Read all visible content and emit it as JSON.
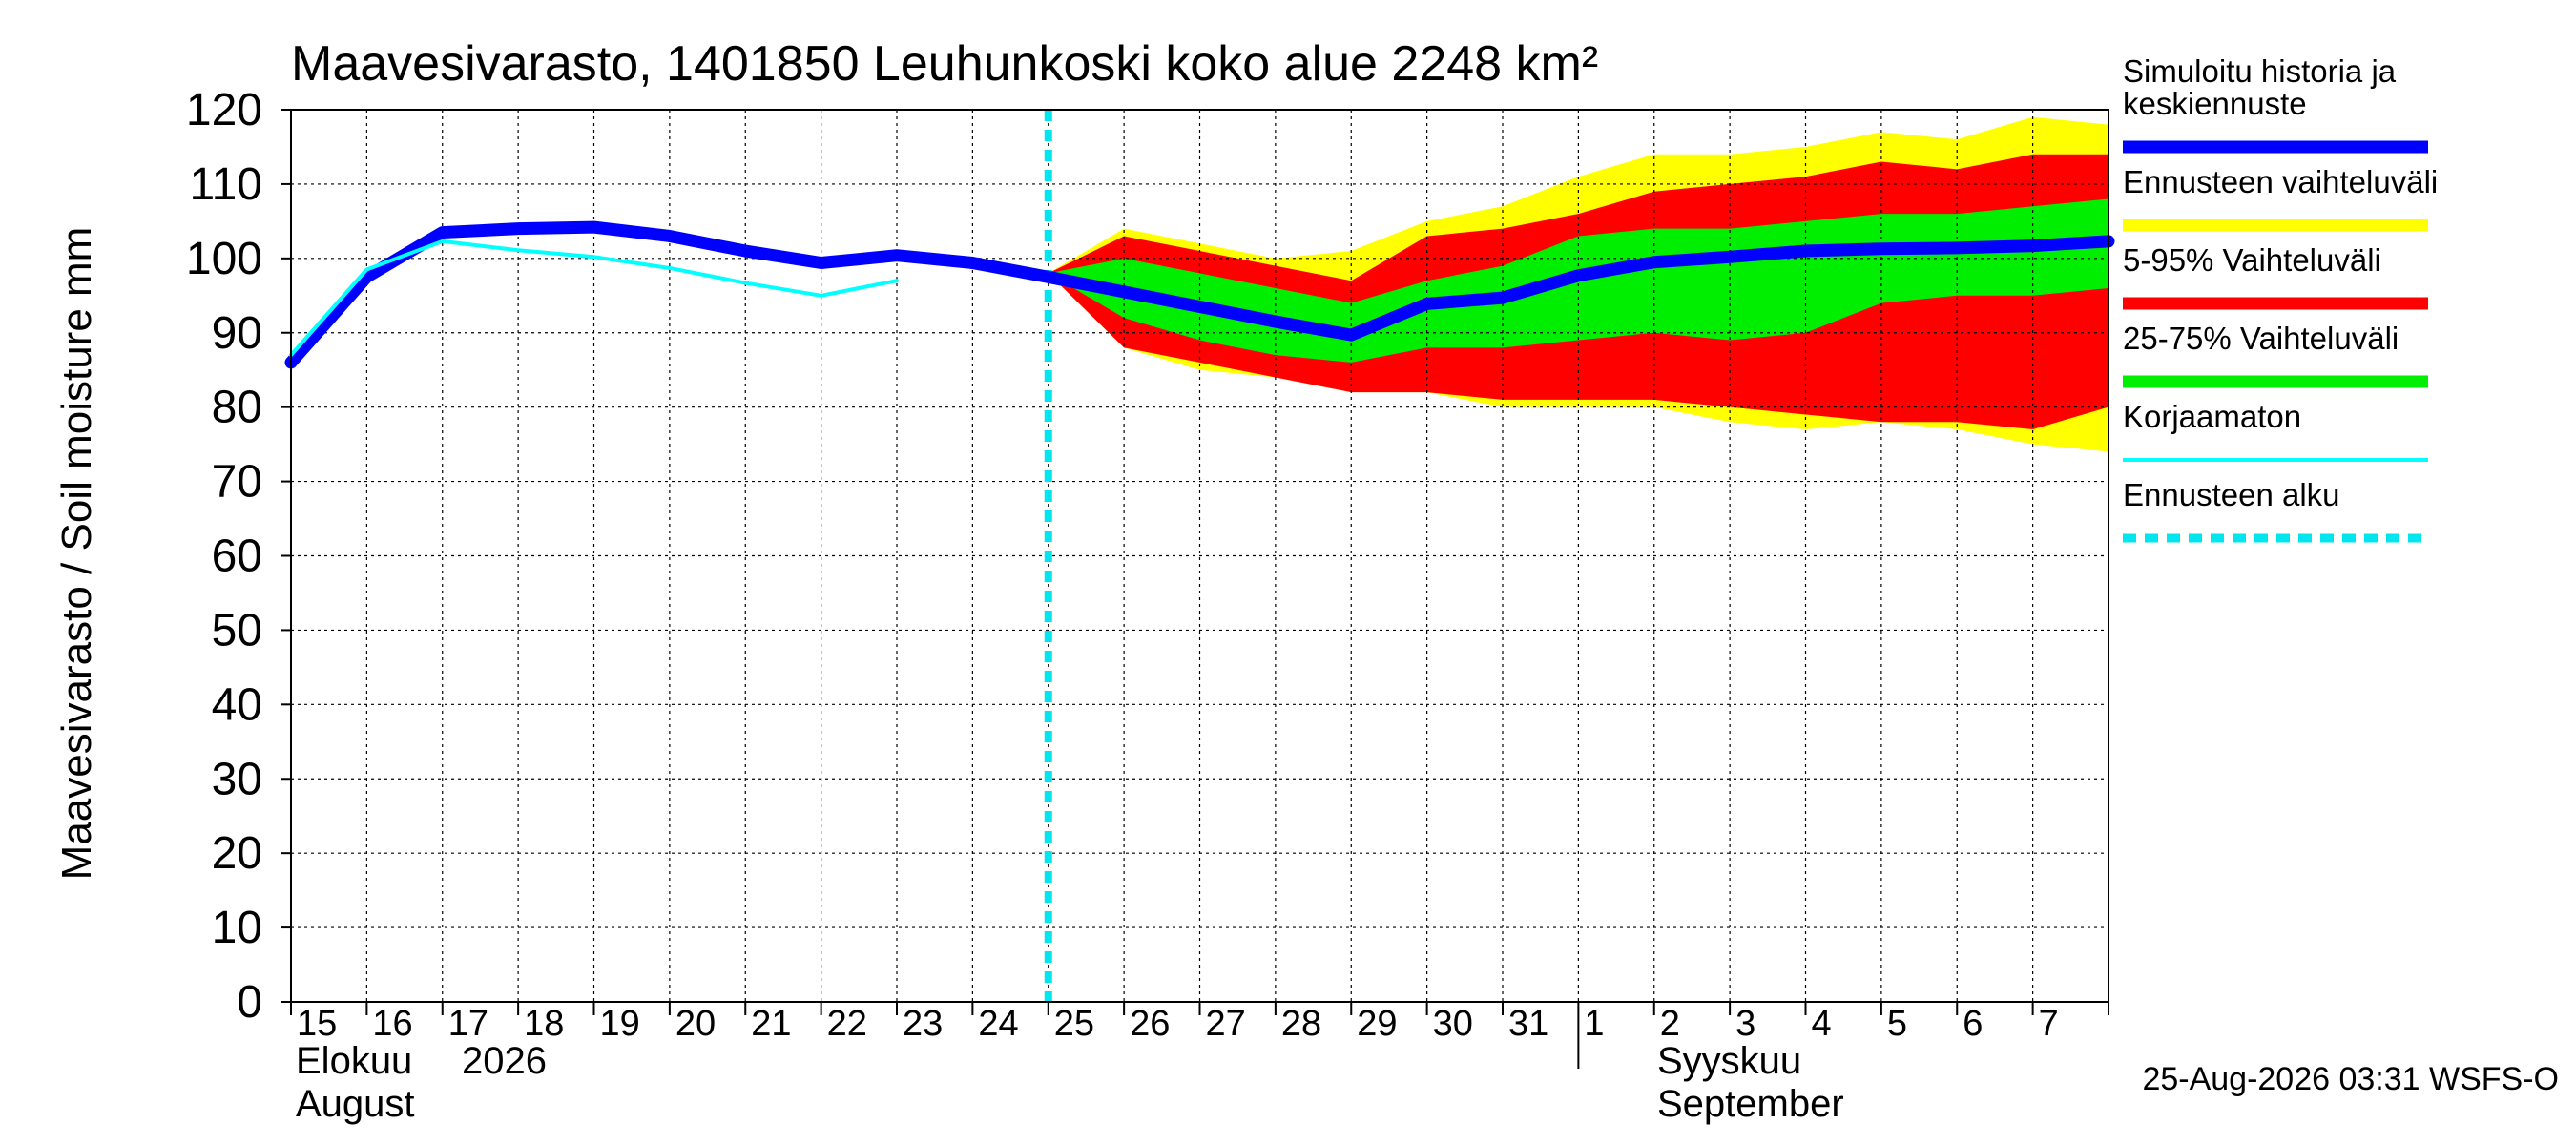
{
  "chart_data": {
    "type": "area",
    "title": "Maavesivarasto, 1401850 Leuhunkoski koko alue 2248 km²",
    "ylabel": "Maavesivarasto / Soil moisture   mm",
    "ylim": [
      0,
      120
    ],
    "y_ticks": [
      0,
      10,
      20,
      30,
      40,
      50,
      60,
      70,
      80,
      90,
      100,
      110,
      120
    ],
    "x_day_labels": [
      "15",
      "16",
      "17",
      "18",
      "19",
      "20",
      "21",
      "22",
      "23",
      "24",
      "25",
      "26",
      "27",
      "28",
      "29",
      "30",
      "31",
      "1",
      "2",
      "3",
      "4",
      "5",
      "6",
      "7"
    ],
    "month_labels": {
      "august_fi": "Elokuu",
      "year": "2026",
      "august_en": "August",
      "september_fi": "Syyskuu",
      "september_en": "September"
    },
    "forecast_start_day": "25",
    "footer": "25-Aug-2026 03:31 WSFS-O",
    "grid": true,
    "legend": {
      "placement": "right",
      "entries": [
        {
          "label": "Simuloitu historia ja\nkeskiennuste",
          "color": "#0000ff",
          "style": "thick"
        },
        {
          "label": "Ennusteen vaihteluväli",
          "color": "#ffff00",
          "style": "thick"
        },
        {
          "label": "5-95% Vaihteluväli",
          "color": "#ff0000",
          "style": "thick"
        },
        {
          "label": "25-75% Vaihteluväli",
          "color": "#00ee00",
          "style": "thick"
        },
        {
          "label": "Korjaamaton",
          "color": "#00ffff",
          "style": "thin"
        },
        {
          "label": "Ennusteen alku",
          "color": "#00e5ee",
          "style": "dashed"
        }
      ]
    },
    "bands": {
      "day_index": [
        10,
        11,
        12,
        13,
        14,
        15,
        16,
        17,
        18,
        19,
        20,
        21,
        22,
        23,
        24
      ],
      "range_upper": [
        98,
        104,
        102,
        100,
        101,
        105,
        107,
        111,
        114,
        114,
        115,
        117,
        116,
        119,
        118
      ],
      "range_lower": [
        98,
        88,
        85,
        84,
        82,
        82,
        80,
        80,
        80,
        78,
        77,
        78,
        77,
        75,
        74
      ],
      "p95": [
        98,
        103,
        101,
        99,
        97,
        103,
        104,
        106,
        109,
        110,
        111,
        113,
        112,
        114,
        114
      ],
      "p05": [
        98,
        88,
        86,
        84,
        82,
        82,
        81,
        81,
        81,
        80,
        79,
        78,
        78,
        77,
        80
      ],
      "p75": [
        98,
        100,
        98,
        96,
        94,
        97,
        99,
        103,
        104,
        104,
        105,
        106,
        106,
        107,
        108
      ],
      "p25": [
        98,
        92,
        89,
        87,
        86,
        88,
        88,
        89,
        90,
        89,
        90,
        94,
        95,
        95,
        96
      ]
    },
    "series": [
      {
        "name": "Simuloitu historia ja keskiennuste",
        "color": "#0000ff",
        "x": [
          0,
          1,
          2,
          3,
          4,
          5,
          6,
          7,
          8,
          9,
          10,
          11,
          12,
          13,
          14,
          15,
          16,
          17,
          18,
          19,
          20,
          21,
          22,
          23,
          24
        ],
        "values": [
          86,
          97.5,
          103.5,
          104,
          104.2,
          103,
          101,
          99.4,
          100.4,
          99.4,
          97.5,
          95.5,
          93.5,
          91.5,
          89.7,
          93.9,
          94.7,
          97.7,
          99.5,
          100.2,
          101,
          101.3,
          101.4,
          101.7,
          102.3
        ]
      },
      {
        "name": "Korjaamaton",
        "color": "#00ffff",
        "x": [
          0,
          1,
          2,
          3,
          4,
          5,
          6,
          7,
          8
        ],
        "values": [
          87,
          98.5,
          102.3,
          101.1,
          100.2,
          98.7,
          96.7,
          95,
          97
        ]
      }
    ]
  }
}
